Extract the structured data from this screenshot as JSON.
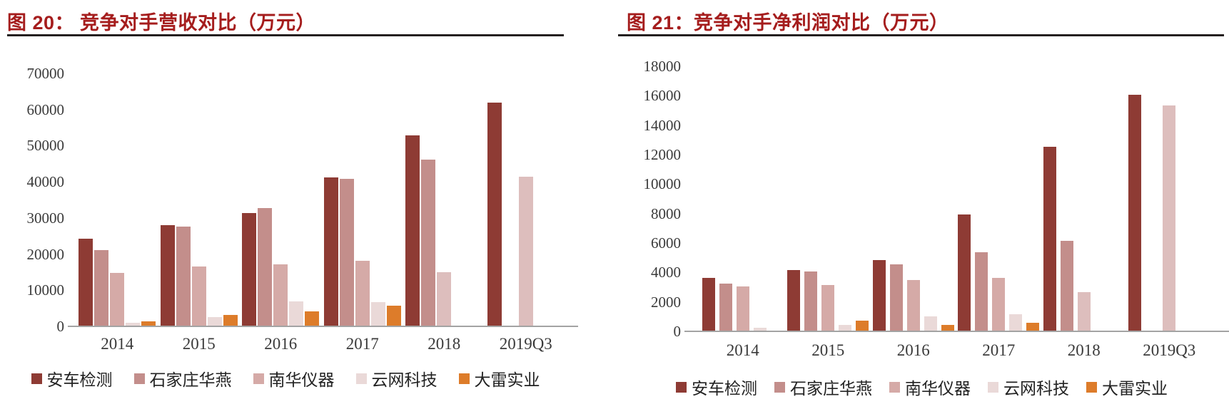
{
  "figure": {
    "background": "#ffffff",
    "title_color": "#a51d1d",
    "title_rule_color": "#241f1f",
    "axis_line_color": "#a3a3a3",
    "tick_text_color": "#3a3a3a"
  },
  "chart_data": [
    {
      "type": "bar",
      "title": "图 20：  竞争对手营收对比（万元）",
      "unit_label": "万元",
      "categories": [
        "2014",
        "2015",
        "2016",
        "2017",
        "2018",
        "2019Q3"
      ],
      "series": [
        {
          "name": "安车检测",
          "color": "#8e3b34",
          "values": [
            24000,
            27800,
            31200,
            41000,
            52700,
            61700
          ]
        },
        {
          "name": "石家庄华燕",
          "color": "#c38e8b",
          "values": [
            21000,
            27500,
            32600,
            40600,
            46000,
            null
          ]
        },
        {
          "name": "南华仪器",
          "color": "#d5aaa7",
          "values": [
            14500,
            16300,
            17000,
            18000,
            14700,
            41200
          ],
          "color_overrides": {
            "4": "#ddbebd",
            "5": "#ddbebd"
          }
        },
        {
          "name": "云网科技",
          "color": "#ead9d8",
          "values": [
            800,
            2400,
            6800,
            6500,
            null,
            null
          ]
        },
        {
          "name": "大雷实业",
          "color": "#dd7c2a",
          "values": [
            1100,
            2900,
            3900,
            5500,
            null,
            null
          ]
        }
      ],
      "ylim": [
        0,
        70000
      ],
      "yticks": [
        0,
        10000,
        20000,
        30000,
        40000,
        50000,
        60000,
        70000
      ],
      "grid": false,
      "legend_position": "bottom"
    },
    {
      "type": "bar",
      "title": "图 21：竞争对手净利润对比（万元）",
      "unit_label": "万元",
      "categories": [
        "2014",
        "2015",
        "2016",
        "2017",
        "2018",
        "2019Q3"
      ],
      "series": [
        {
          "name": "安车检测",
          "color": "#8e3b34",
          "values": [
            3600,
            4100,
            4800,
            7900,
            12500,
            16000
          ]
        },
        {
          "name": "石家庄华燕",
          "color": "#c38e8b",
          "values": [
            3200,
            4000,
            4500,
            5300,
            6100,
            null
          ]
        },
        {
          "name": "南华仪器",
          "color": "#d5aaa7",
          "values": [
            3000,
            3100,
            3450,
            3600,
            2600,
            15300
          ],
          "color_overrides": {
            "4": "#ddbebd",
            "5": "#ddbebd"
          }
        },
        {
          "name": "云网科技",
          "color": "#ead9d8",
          "values": [
            200,
            400,
            950,
            1100,
            null,
            null
          ]
        },
        {
          "name": "大雷实业",
          "color": "#dd7c2a",
          "values": [
            null,
            700,
            400,
            550,
            null,
            null
          ]
        }
      ],
      "ylim": [
        0,
        18000
      ],
      "yticks": [
        0,
        2000,
        4000,
        6000,
        8000,
        10000,
        12000,
        14000,
        16000,
        18000
      ],
      "grid": false,
      "legend_position": "bottom"
    }
  ]
}
